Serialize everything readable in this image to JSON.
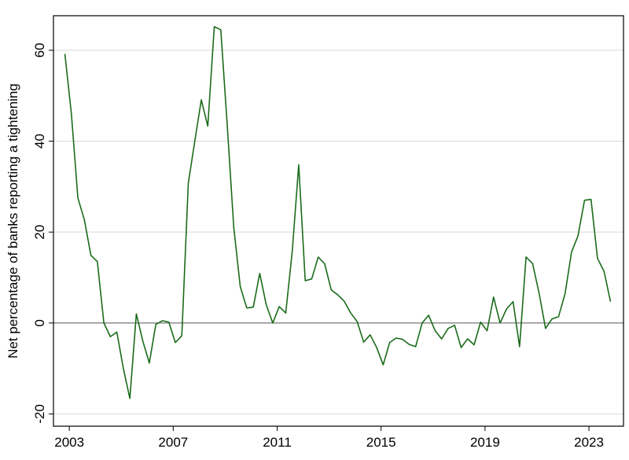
{
  "chart_data": {
    "type": "line",
    "ylabel": "Net percentage of banks reporting a tightening",
    "x": [
      2002.83,
      2003.08,
      2003.33,
      2003.58,
      2003.83,
      2004.08,
      2004.33,
      2004.58,
      2004.83,
      2005.08,
      2005.33,
      2005.58,
      2005.83,
      2006.08,
      2006.33,
      2006.58,
      2006.83,
      2007.08,
      2007.33,
      2007.58,
      2007.83,
      2008.08,
      2008.33,
      2008.58,
      2008.83,
      2009.08,
      2009.33,
      2009.58,
      2009.83,
      2010.08,
      2010.33,
      2010.58,
      2010.83,
      2011.08,
      2011.33,
      2011.58,
      2011.83,
      2012.08,
      2012.33,
      2012.58,
      2012.83,
      2013.08,
      2013.33,
      2013.58,
      2013.83,
      2014.08,
      2014.33,
      2014.58,
      2014.83,
      2015.08,
      2015.33,
      2015.58,
      2015.83,
      2016.08,
      2016.33,
      2016.58,
      2016.83,
      2017.08,
      2017.33,
      2017.58,
      2017.83,
      2018.08,
      2018.33,
      2018.58,
      2018.83,
      2019.08,
      2019.33,
      2019.58,
      2019.83,
      2020.08,
      2020.33,
      2020.58,
      2020.83,
      2021.08,
      2021.33,
      2021.58,
      2021.83,
      2022.08,
      2022.33,
      2022.58,
      2022.83,
      2023.08,
      2023.33,
      2023.58,
      2023.83
    ],
    "series": [
      {
        "name": "Net percentage",
        "color": "#1a6b1a",
        "values": [
          59.2,
          46,
          27.5,
          22.7,
          14.9,
          13.5,
          0,
          -3,
          -2,
          -10,
          -16.6,
          2,
          -4,
          -8.8,
          -0.3,
          0.5,
          0.2,
          -4.3,
          -2.8,
          30.8,
          40,
          49.1,
          43.3,
          65.2,
          64.5,
          43.4,
          21,
          8,
          3.3,
          3.5,
          10.9,
          4,
          0,
          3.6,
          2.2,
          15.7,
          34.8,
          9.3,
          9.7,
          14.5,
          13,
          7.3,
          6.2,
          4.8,
          2.2,
          0.3,
          -4.2,
          -2.6,
          -5.4,
          -9.2,
          -4.3,
          -3.3,
          -3.6,
          -4.7,
          -5.2,
          0,
          1.7,
          -1.7,
          -3.5,
          -1.2,
          -0.5,
          -5.4,
          -3.5,
          -4.8,
          0.2,
          -1.7,
          5.7,
          0,
          3.1,
          4.7,
          -5.2,
          14.5,
          13.1,
          6.6,
          -1.2,
          0.9,
          1.4,
          6.4,
          15.6,
          19.2,
          27,
          27.2,
          14.2,
          11.4,
          4.7
        ]
      }
    ],
    "xlim": [
      2002.39,
      2024.33
    ],
    "xticks": [
      2003,
      2007,
      2011,
      2015,
      2019,
      2023
    ],
    "ylim": [
      -22.7,
      67.6
    ],
    "yticks": [
      -20,
      0,
      20,
      40,
      60
    ],
    "grid": true,
    "zero_line": true
  }
}
